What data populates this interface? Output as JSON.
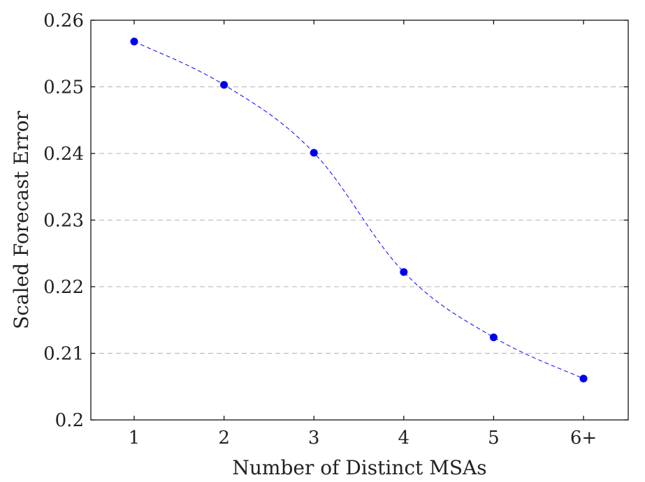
{
  "chart_data": {
    "type": "line",
    "categories": [
      "1",
      "2",
      "3",
      "4",
      "5",
      "6+"
    ],
    "series": [
      {
        "values": [
          0.2568,
          0.2503,
          0.2401,
          0.2222,
          0.2124,
          0.2062
        ]
      }
    ],
    "xlabel": "Number of Distinct MSAs",
    "ylabel": "Scaled Forecast Error",
    "ylim": [
      0.2,
      0.26
    ],
    "yticks": [
      "0.2",
      "0.21",
      "0.22",
      "0.23",
      "0.24",
      "0.25",
      "0.26"
    ],
    "grid": "horizontal-dashed",
    "colors": {
      "series": "#0000ff",
      "grid": "#b3b3b3"
    }
  }
}
